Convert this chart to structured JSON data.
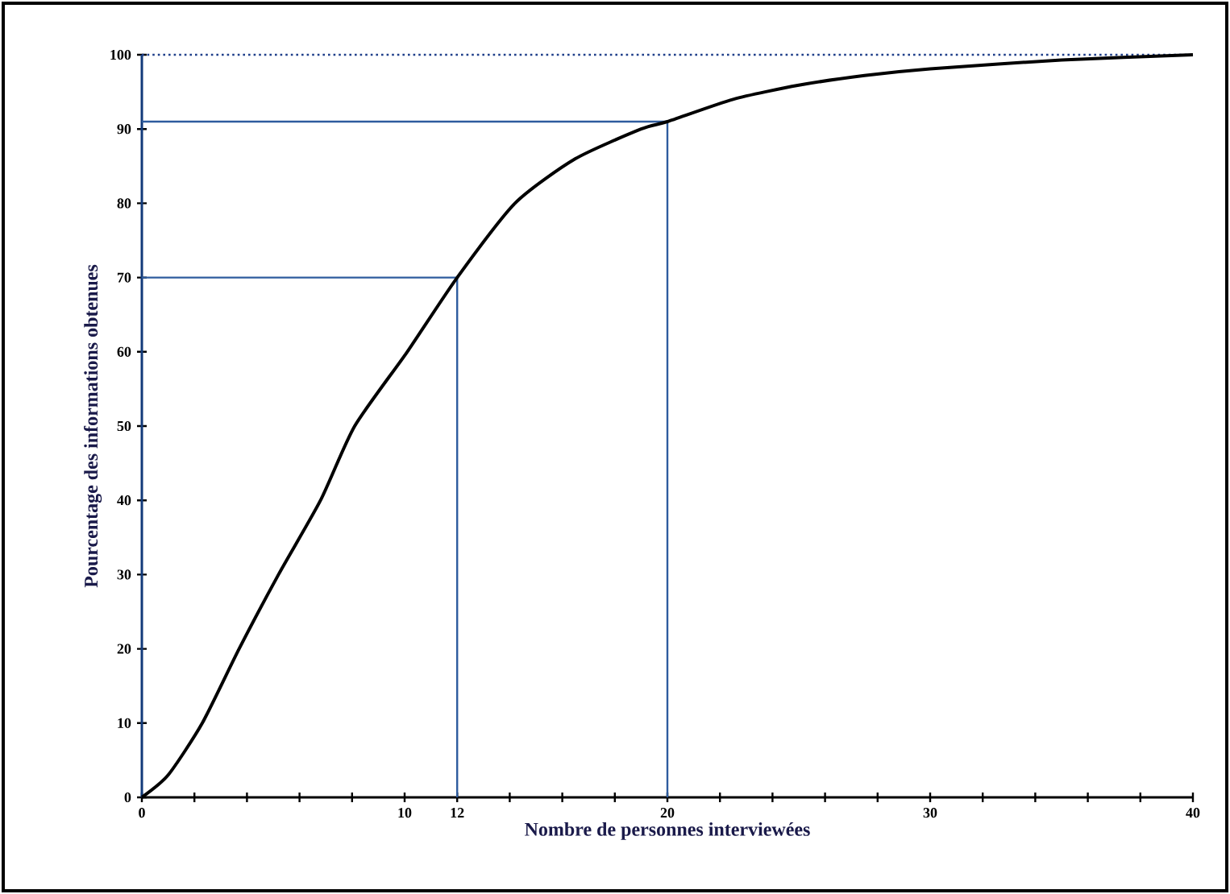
{
  "chart_data": {
    "type": "line",
    "xlabel": "Nombre de personnes interviewées",
    "ylabel": "Pourcentage des informations obtenues",
    "xlim": [
      0,
      40
    ],
    "ylim": [
      0,
      100
    ],
    "xticks": [
      0,
      {
        "value": 2,
        "label": null
      },
      {
        "value": 4,
        "label": null
      },
      {
        "value": 6,
        "label": null
      },
      {
        "value": 8,
        "label": null
      },
      10,
      12,
      {
        "value": 14,
        "label": null
      },
      {
        "value": 16,
        "label": null
      },
      {
        "value": 18,
        "label": null
      },
      20,
      {
        "value": 22,
        "label": null
      },
      {
        "value": 24,
        "label": null
      },
      {
        "value": 26,
        "label": null
      },
      {
        "value": 28,
        "label": null
      },
      30,
      {
        "value": 32,
        "label": null
      },
      {
        "value": 34,
        "label": null
      },
      {
        "value": 36,
        "label": null
      },
      {
        "value": 38,
        "label": null
      },
      40
    ],
    "yticks": [
      0,
      10,
      20,
      30,
      40,
      50,
      60,
      70,
      80,
      90,
      100
    ],
    "grid": false,
    "marker": "none",
    "series": [
      {
        "color": "#000000",
        "line_style": "solid",
        "x": [
          0,
          1,
          2.3,
          3.7,
          5.2,
          6.8,
          8.1,
          10.1,
          12,
          14.2,
          16.5,
          19,
          20,
          22.5,
          25,
          27.5,
          30,
          35,
          40
        ],
        "values": [
          0,
          3,
          10,
          20,
          30,
          40,
          50,
          60,
          70,
          80,
          86,
          90,
          91,
          94,
          95.9,
          97.2,
          98.1,
          99.3,
          100
        ]
      },
      {
        "color": "#2e5c9e",
        "line_style": "solid",
        "x": [
          0,
          12,
          12
        ],
        "values": [
          70,
          70,
          0
        ]
      },
      {
        "color": "#2e5c9e",
        "line_style": "solid",
        "x": [
          0,
          20,
          20
        ],
        "values": [
          91,
          91,
          0
        ]
      }
    ],
    "ref_lines": [
      {
        "axis": "y",
        "value": 100,
        "color": "#1f3f8a",
        "line_style": "dotted"
      }
    ]
  }
}
